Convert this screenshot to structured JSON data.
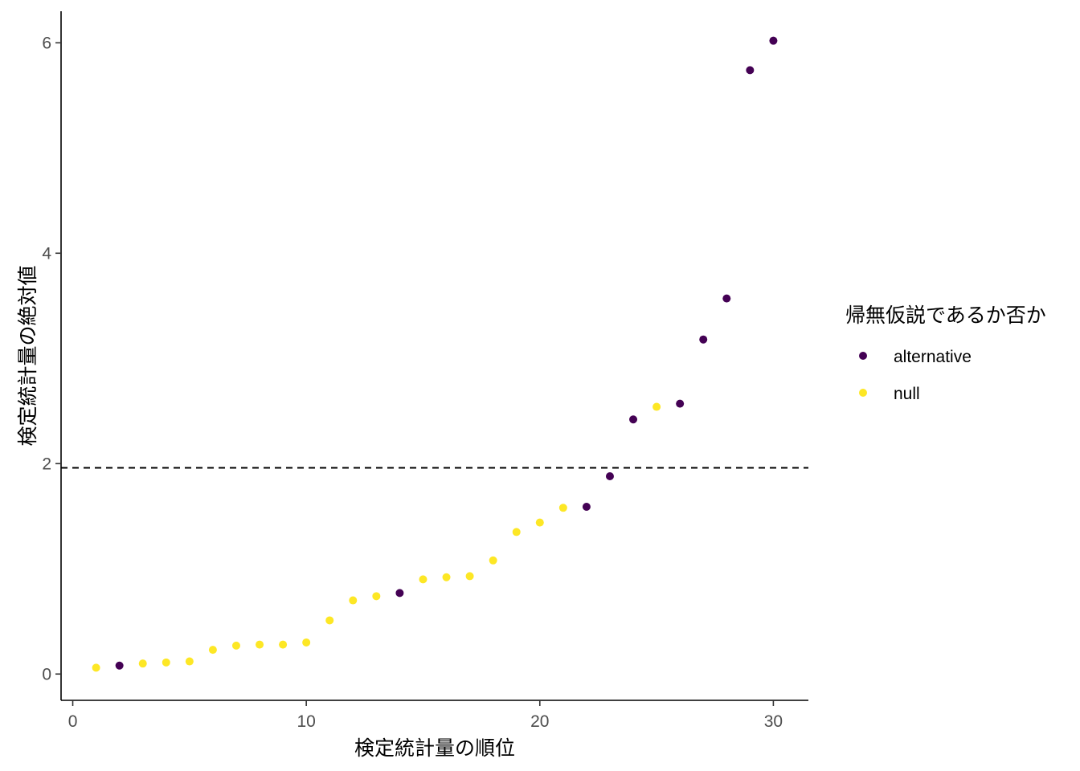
{
  "chart_data": {
    "type": "scatter",
    "xlabel": "検定統計量の順位",
    "ylabel": "検定統計量の絶対値",
    "xlim": [
      -0.5,
      31.5
    ],
    "ylim": [
      -0.25,
      6.3
    ],
    "x_ticks": [
      0,
      10,
      20,
      30
    ],
    "y_ticks": [
      0,
      2,
      4,
      6
    ],
    "x_tick_labels": [
      "0",
      "10",
      "20",
      "30"
    ],
    "y_tick_labels": [
      "0",
      "2",
      "4",
      "6"
    ],
    "grid": false,
    "reference_line": {
      "y": 1.96,
      "style": "dashed",
      "color": "#000000"
    },
    "legend": {
      "title": "帰無仮説であるか否か",
      "position": "right",
      "entries": [
        {
          "label": "alternative",
          "color": "#440154"
        },
        {
          "label": "null",
          "color": "#FDE725"
        }
      ]
    },
    "series": [
      {
        "name": "alternative",
        "color": "#440154",
        "points": [
          {
            "x": 2,
            "y": 0.08
          },
          {
            "x": 14,
            "y": 0.77
          },
          {
            "x": 22,
            "y": 1.59
          },
          {
            "x": 23,
            "y": 1.88
          },
          {
            "x": 24,
            "y": 2.42
          },
          {
            "x": 26,
            "y": 2.57
          },
          {
            "x": 27,
            "y": 3.18
          },
          {
            "x": 28,
            "y": 3.57
          },
          {
            "x": 29,
            "y": 5.74
          },
          {
            "x": 30,
            "y": 6.02
          }
        ]
      },
      {
        "name": "null",
        "color": "#FDE725",
        "points": [
          {
            "x": 1,
            "y": 0.06
          },
          {
            "x": 3,
            "y": 0.1
          },
          {
            "x": 4,
            "y": 0.11
          },
          {
            "x": 5,
            "y": 0.12
          },
          {
            "x": 6,
            "y": 0.23
          },
          {
            "x": 7,
            "y": 0.27
          },
          {
            "x": 8,
            "y": 0.28
          },
          {
            "x": 9,
            "y": 0.28
          },
          {
            "x": 10,
            "y": 0.3
          },
          {
            "x": 11,
            "y": 0.51
          },
          {
            "x": 12,
            "y": 0.7
          },
          {
            "x": 13,
            "y": 0.74
          },
          {
            "x": 15,
            "y": 0.9
          },
          {
            "x": 16,
            "y": 0.92
          },
          {
            "x": 17,
            "y": 0.93
          },
          {
            "x": 18,
            "y": 1.08
          },
          {
            "x": 19,
            "y": 1.35
          },
          {
            "x": 20,
            "y": 1.44
          },
          {
            "x": 21,
            "y": 1.58
          },
          {
            "x": 25,
            "y": 2.54
          }
        ]
      }
    ]
  }
}
